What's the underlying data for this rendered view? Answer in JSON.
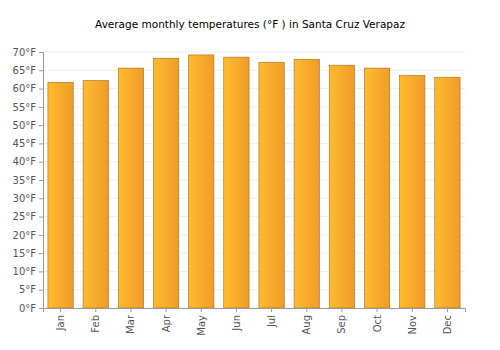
{
  "chart_data": {
    "type": "bar",
    "title": "Average monthly temperatures (°F ) in Santa Cruz Verapaz",
    "categories": [
      "Jan",
      "Feb",
      "Mar",
      "Apr",
      "May",
      "Jun",
      "Jul",
      "Aug",
      "Sep",
      "Oct",
      "Nov",
      "Dec"
    ],
    "values": [
      61.7,
      62.2,
      65.6,
      68.3,
      69.2,
      68.6,
      67.2,
      68.0,
      66.4,
      65.6,
      63.6,
      63.1
    ],
    "color": "#fca52a",
    "ylim": [
      0,
      70
    ],
    "yticks": [
      {
        "value": 0,
        "label": "0°F"
      },
      {
        "value": 5,
        "label": "5°F"
      },
      {
        "value": 10,
        "label": "10°F"
      },
      {
        "value": 15,
        "label": "15°F"
      },
      {
        "value": 20,
        "label": "20°F"
      },
      {
        "value": 25,
        "label": "25°F"
      },
      {
        "value": 30,
        "label": "30°F"
      },
      {
        "value": 35,
        "label": "35°F"
      },
      {
        "value": 40,
        "label": "40°F"
      },
      {
        "value": 45,
        "label": "45°F"
      },
      {
        "value": 50,
        "label": "50°F"
      },
      {
        "value": 55,
        "label": "55°F"
      },
      {
        "value": 60,
        "label": "60°F"
      },
      {
        "value": 65,
        "label": "65°F"
      },
      {
        "value": 70,
        "label": "70°F"
      }
    ],
    "grid": true
  }
}
